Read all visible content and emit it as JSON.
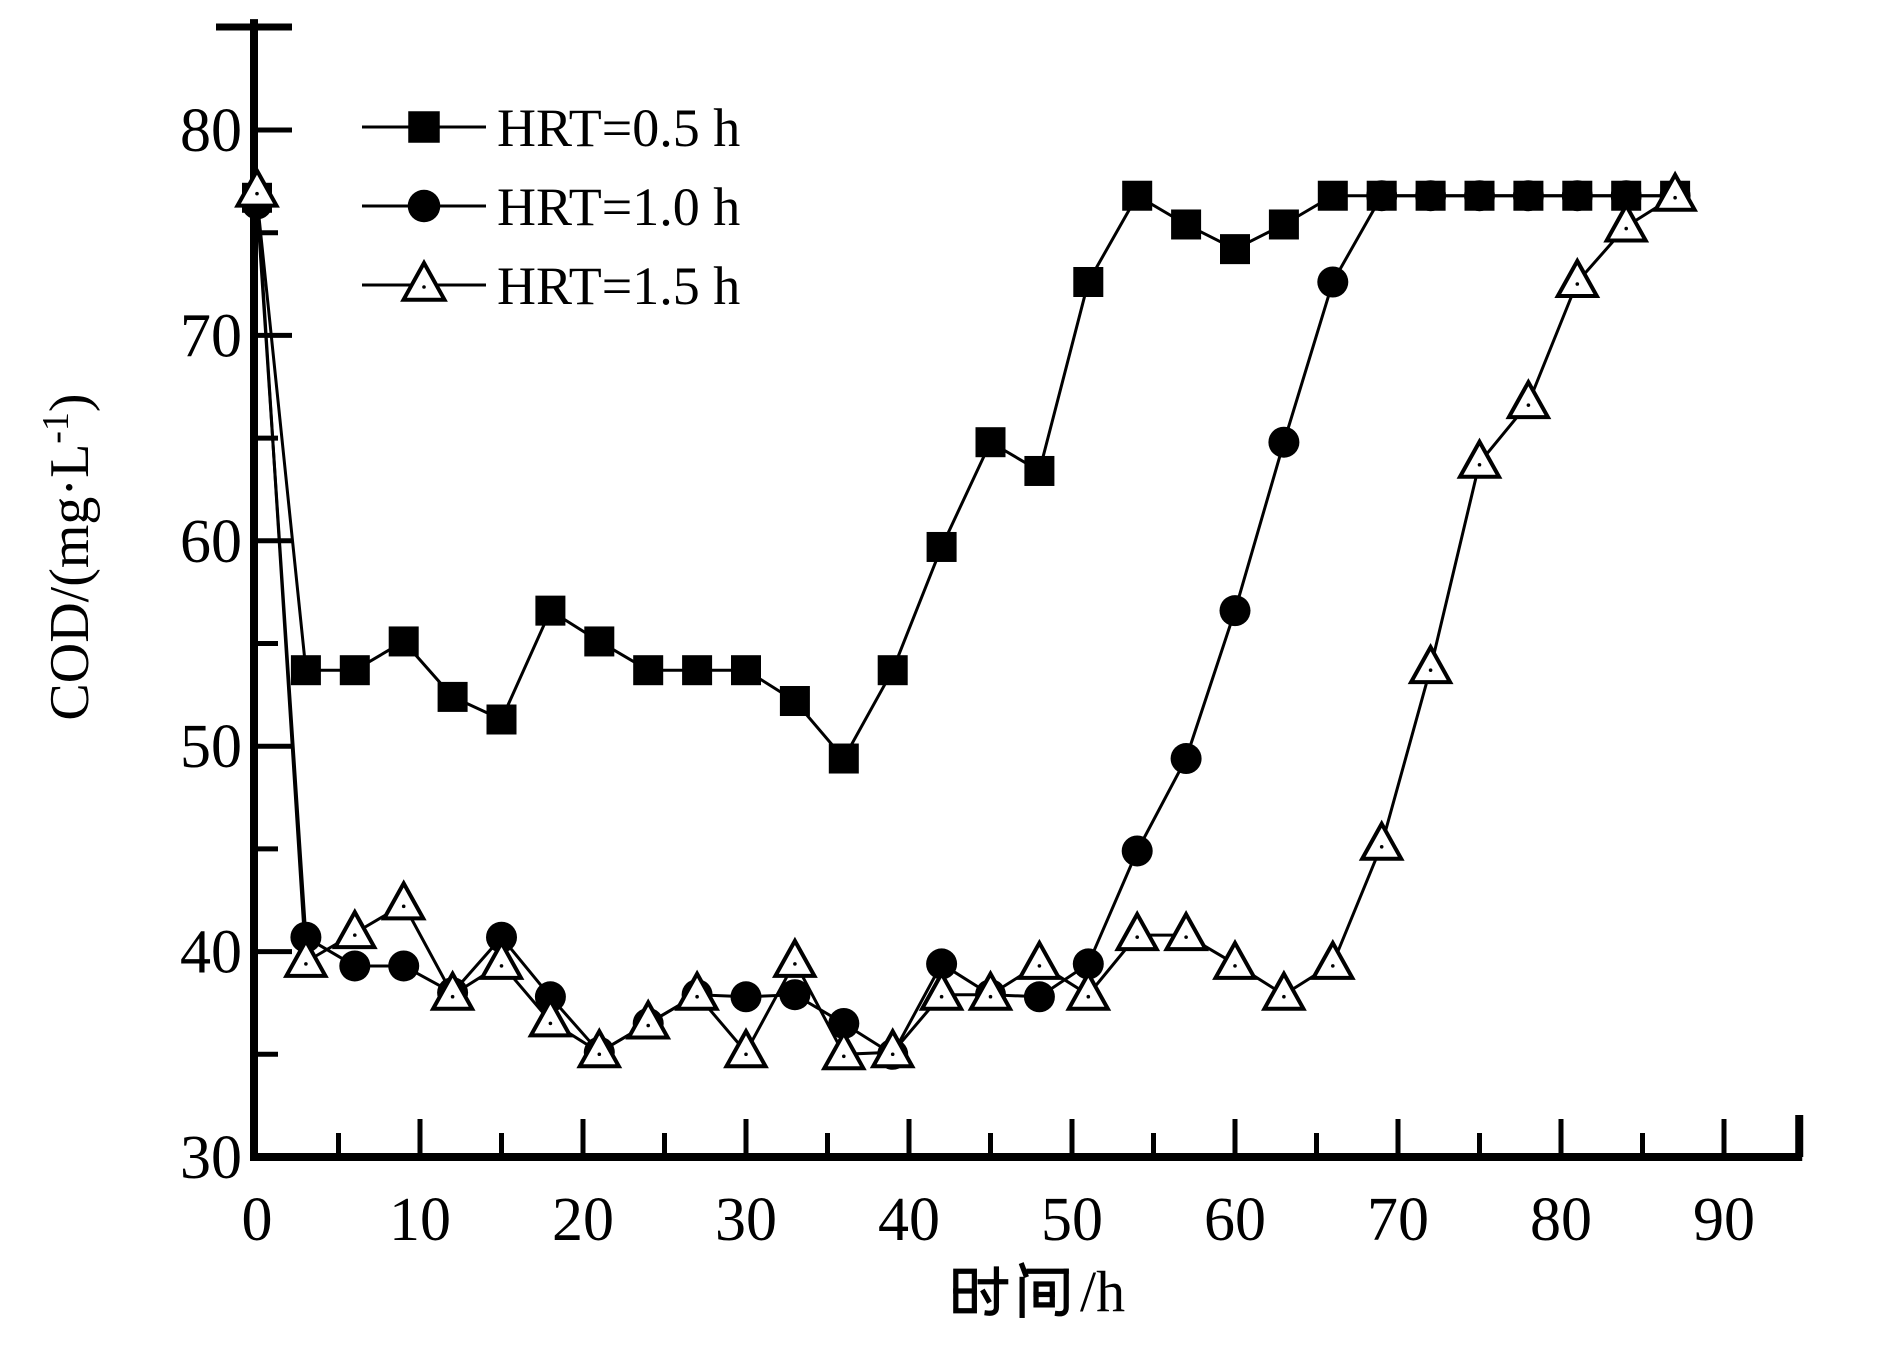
{
  "chart_data": {
    "type": "line",
    "title": "",
    "xlabel": "时间/h",
    "ylabel": "COD/(mg·L⁻¹)",
    "ylabel_parts": {
      "pre": "COD/(mg·L",
      "sup": "-1",
      "post": ")"
    },
    "xlim": [
      0,
      94.8
    ],
    "ylim": [
      30,
      85.4
    ],
    "x_major_ticks": [
      0,
      10,
      20,
      30,
      40,
      50,
      60,
      70,
      80,
      90
    ],
    "x_minor_ticks": [
      5,
      15,
      25,
      35,
      45,
      55,
      65,
      75,
      85
    ],
    "y_major_ticks": [
      30,
      40,
      50,
      60,
      70,
      80
    ],
    "y_minor_ticks": [
      35,
      45,
      55,
      65,
      75,
      85
    ],
    "grid": false,
    "legend_position": "upper-left-inside",
    "line_color": "#000000",
    "background_color": "#ffffff",
    "x": [
      0,
      3,
      6,
      9,
      12,
      15,
      18,
      21,
      24,
      27,
      30,
      33,
      36,
      39,
      42,
      45,
      48,
      51,
      54,
      57,
      60,
      63,
      66,
      69,
      72,
      75,
      78,
      81,
      84,
      87
    ],
    "series": [
      {
        "name": "HRT=0.5 h",
        "marker": "square",
        "fill": "filled",
        "values": [
          76.7,
          53.7,
          53.7,
          55.1,
          52.4,
          51.3,
          56.6,
          55.1,
          53.7,
          53.7,
          53.7,
          52.2,
          49.4,
          53.7,
          59.7,
          64.8,
          63.4,
          72.6,
          76.8,
          75.4,
          74.2,
          75.4,
          76.8,
          76.8,
          76.8,
          76.8,
          76.8,
          76.8,
          76.8,
          76.8
        ]
      },
      {
        "name": "HRT=1.0 h",
        "marker": "circle",
        "fill": "filled",
        "values": [
          76.4,
          40.7,
          39.3,
          39.3,
          38.0,
          40.7,
          37.8,
          35.1,
          36.5,
          37.9,
          37.8,
          37.9,
          36.5,
          35.0,
          39.4,
          37.9,
          37.8,
          39.4,
          44.9,
          49.4,
          56.6,
          64.8,
          72.6,
          76.8,
          76.8,
          76.8,
          76.8,
          76.8,
          76.8,
          76.8
        ]
      },
      {
        "name": "HRT=1.5 h",
        "marker": "triangle",
        "fill": "open",
        "values": [
          77.0,
          39.5,
          40.9,
          42.3,
          37.9,
          39.4,
          36.6,
          35.1,
          36.5,
          37.9,
          35.1,
          39.5,
          35.0,
          35.1,
          37.9,
          37.9,
          39.4,
          37.9,
          40.8,
          40.8,
          39.4,
          37.9,
          39.4,
          45.2,
          53.8,
          63.8,
          66.7,
          72.6,
          75.3,
          76.8
        ]
      }
    ]
  }
}
